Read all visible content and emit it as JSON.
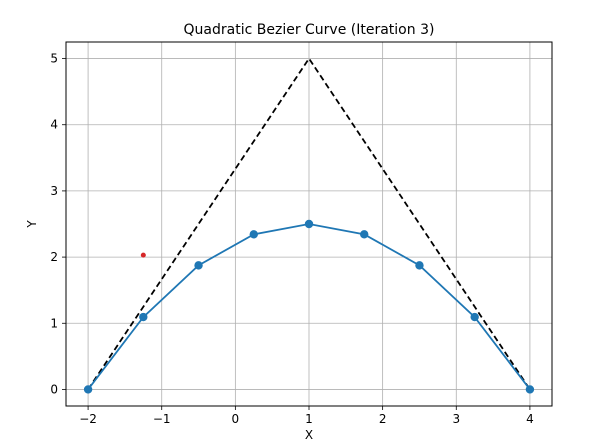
{
  "chart_data": {
    "type": "line",
    "title": "Quadratic Bezier Curve (Iteration 3)",
    "xlabel": "X",
    "ylabel": "Y",
    "xlim": [
      -2.3,
      4.3
    ],
    "ylim": [
      -0.25,
      5.25
    ],
    "grid": true,
    "x_ticks": [
      -2,
      -1,
      0,
      1,
      2,
      3,
      4
    ],
    "y_ticks": [
      0,
      1,
      2,
      3,
      4,
      5
    ],
    "x_tick_labels": [
      "−2",
      "−1",
      "0",
      "1",
      "2",
      "3",
      "4"
    ],
    "y_tick_labels": [
      "0",
      "1",
      "2",
      "3",
      "4",
      "5"
    ],
    "series": [
      {
        "style": "dashed",
        "color": "#000000",
        "marker": "none",
        "points": [
          [
            -2,
            0
          ],
          [
            1,
            5
          ],
          [
            4,
            0
          ]
        ]
      },
      {
        "style": "solid",
        "color": "#1f77b4",
        "marker": "circle",
        "points": [
          [
            -2,
            0
          ],
          [
            -1.25,
            1.094
          ],
          [
            -0.5,
            1.875
          ],
          [
            0.25,
            2.344
          ],
          [
            1,
            2.5
          ],
          [
            1.75,
            2.344
          ],
          [
            2.5,
            1.875
          ],
          [
            3.25,
            1.094
          ],
          [
            4,
            0
          ]
        ]
      },
      {
        "style": "point",
        "color": "#d62728",
        "marker": "circle",
        "points": [
          [
            -1.25,
            2.03
          ]
        ]
      }
    ]
  }
}
